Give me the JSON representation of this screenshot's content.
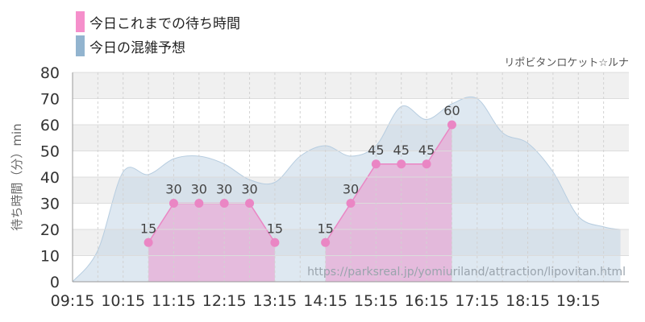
{
  "legend": {
    "actual_label": "今日これまでの待ち時間",
    "forecast_label": "今日の混雑予想"
  },
  "colors": {
    "actual_fill": "#e8a8d4",
    "actual_point": "#ea86c4",
    "actual_swatch": "#f58fcb",
    "forecast_fill": "#c3d6e6",
    "forecast_swatch": "#92b4cf",
    "grid_band": "#f0f0f0"
  },
  "chart_data": {
    "type": "area",
    "credit": "リポビタンロケット☆ルナ",
    "watermark": "https://parksreal.jp/yomiuriland/attraction/lipovitan.html",
    "ylabel": "待ち時間（分）min",
    "ylim": [
      0,
      80
    ],
    "yticks": [
      0,
      10,
      20,
      30,
      40,
      50,
      60,
      70,
      80
    ],
    "xlim": [
      "09:15",
      "20:15"
    ],
    "xticks": [
      "09:15",
      "10:15",
      "11:15",
      "12:15",
      "13:15",
      "14:15",
      "15:15",
      "16:15",
      "17:15",
      "18:15",
      "19:15"
    ],
    "grid": true,
    "legend_position": "top-left",
    "series": [
      {
        "name": "今日の混雑予想",
        "kind": "forecast",
        "points": [
          [
            "09:15",
            0
          ],
          [
            "09:45",
            12
          ],
          [
            "10:15",
            42
          ],
          [
            "10:45",
            41
          ],
          [
            "11:15",
            47
          ],
          [
            "11:45",
            48
          ],
          [
            "12:15",
            45
          ],
          [
            "12:45",
            39
          ],
          [
            "13:15",
            38
          ],
          [
            "13:45",
            48
          ],
          [
            "14:15",
            52
          ],
          [
            "14:45",
            48
          ],
          [
            "15:15",
            52
          ],
          [
            "15:45",
            67
          ],
          [
            "16:15",
            62
          ],
          [
            "16:45",
            68
          ],
          [
            "17:15",
            70
          ],
          [
            "17:45",
            57
          ],
          [
            "18:15",
            53
          ],
          [
            "18:45",
            42
          ],
          [
            "19:15",
            25
          ],
          [
            "19:45",
            21
          ],
          [
            "20:05",
            20
          ]
        ]
      },
      {
        "name": "今日これまでの待ち時間",
        "kind": "actual",
        "segments": [
          [
            [
              "10:45",
              15
            ],
            [
              "11:15",
              30
            ],
            [
              "11:45",
              30
            ],
            [
              "12:15",
              30
            ],
            [
              "12:45",
              30
            ],
            [
              "13:15",
              15
            ]
          ],
          [
            [
              "14:15",
              15
            ],
            [
              "14:45",
              30
            ],
            [
              "15:15",
              45
            ],
            [
              "15:45",
              45
            ],
            [
              "16:15",
              45
            ],
            [
              "16:45",
              60
            ]
          ]
        ]
      }
    ]
  }
}
